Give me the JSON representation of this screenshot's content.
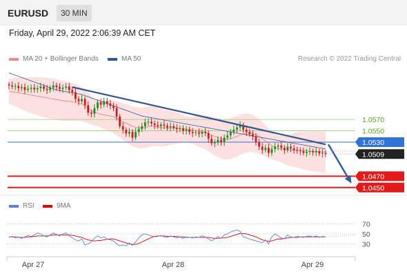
{
  "header": {
    "symbol": "EURUSD",
    "timeframe": "30 MIN"
  },
  "subheader": {
    "datetime": "Friday, April 29, 2022 2:06:39 AM CET"
  },
  "legend": {
    "items": [
      {
        "label": "MA 20 + Bollinger Bands",
        "color": "#f08a8a"
      },
      {
        "label": "MA 50",
        "color": "#2f5a9a"
      }
    ],
    "credit": "Research © 2022 Trading Central"
  },
  "rsi_legend": {
    "items": [
      {
        "label": "RSI",
        "color": "#5b7fdd"
      },
      {
        "label": "9MA",
        "color": "#e00000"
      }
    ]
  },
  "chart_data": {
    "type": "candlestick",
    "symbol": "EURUSD",
    "timeframe": "30 MIN",
    "x_labels": [
      "Apr 27",
      "Apr 28",
      "Apr 29"
    ],
    "price_labels": [
      {
        "value": 1.057,
        "label": "1.0570",
        "kind": "target-green"
      },
      {
        "value": 1.055,
        "label": "1.0550",
        "kind": "target-green"
      },
      {
        "value": 1.053,
        "label": "1.0530",
        "kind": "pivot-blue"
      },
      {
        "value": 1.0509,
        "label": "1.0509",
        "kind": "last-price"
      },
      {
        "value": 1.047,
        "label": "1.0470",
        "kind": "support-red"
      },
      {
        "value": 1.045,
        "label": "1.0450",
        "kind": "support-red"
      }
    ],
    "closes": [
      1.063,
      1.0628,
      1.0629,
      1.0625,
      1.0627,
      1.0622,
      1.0624,
      1.0626,
      1.0623,
      1.0625,
      1.0628,
      1.0624,
      1.0622,
      1.0626,
      1.063,
      1.0627,
      1.0624,
      1.0626,
      1.0628,
      1.0622,
      1.0618,
      1.0606,
      1.0602,
      1.0606,
      1.0595,
      1.0582,
      1.058,
      1.059,
      1.06,
      1.0596,
      1.0602,
      1.0598,
      1.0594,
      1.059,
      1.0575,
      1.0558,
      1.0552,
      1.0545,
      1.0548,
      1.0538,
      1.0548,
      1.0553,
      1.0558,
      1.0565,
      1.0566,
      1.0563,
      1.056,
      1.0558,
      1.0561,
      1.0559,
      1.0556,
      1.0558,
      1.0555,
      1.0553,
      1.0554,
      1.055,
      1.0552,
      1.0548,
      1.0546,
      1.0547,
      1.0545,
      1.0548,
      1.0546,
      1.0536,
      1.0528,
      1.053,
      1.0534,
      1.053,
      1.0538,
      1.0542,
      1.0548,
      1.0552,
      1.0556,
      1.056,
      1.0552,
      1.0548,
      1.0544,
      1.054,
      1.053,
      1.0522,
      1.0516,
      1.052,
      1.0511,
      1.0518,
      1.0522,
      1.0524,
      1.052,
      1.0516,
      1.0522,
      1.0519,
      1.0516,
      1.0515,
      1.0514,
      1.0511,
      1.0513,
      1.0514,
      1.0512,
      1.0514,
      1.051,
      1.0511,
      1.0509
    ],
    "ma20": [
      1.062,
      1.0619,
      1.0618,
      1.0617,
      1.0616,
      1.0615,
      1.0614,
      1.0613,
      1.0612,
      1.0611,
      1.061,
      1.0609,
      1.0608,
      1.0607,
      1.0606,
      1.0605,
      1.0604,
      1.0603,
      1.0602,
      1.0602,
      1.0601,
      1.06,
      1.0599,
      1.0597,
      1.0594,
      1.059,
      1.0586,
      1.0583,
      1.0581,
      1.0579,
      1.0578,
      1.0577,
      1.0576,
      1.0575,
      1.0572,
      1.0569,
      1.0566,
      1.0563,
      1.0561,
      1.0558,
      1.0556,
      1.0555,
      1.0555,
      1.0556,
      1.0557,
      1.0558,
      1.0558,
      1.0557,
      1.0556,
      1.0555,
      1.0555,
      1.0555,
      1.0555,
      1.0555,
      1.0554,
      1.0554,
      1.0553,
      1.0552,
      1.0551,
      1.055,
      1.0549,
      1.0548,
      1.0547,
      1.0545,
      1.0542,
      1.054,
      1.0538,
      1.0536,
      1.0535,
      1.0535,
      1.0536,
      1.0538,
      1.054,
      1.0543,
      1.0545,
      1.0546,
      1.0546,
      1.0545,
      1.0543,
      1.054,
      1.0536,
      1.0532,
      1.0528,
      1.0524,
      1.0521,
      1.0519,
      1.0518,
      1.0517,
      1.0516,
      1.0516,
      1.0516,
      1.0516,
      1.0516,
      1.0515,
      1.0515,
      1.0514,
      1.0514,
      1.0514,
      1.0513,
      1.0513,
      1.0513
    ],
    "ma50": [
      1.0652,
      1.065,
      1.0648,
      1.0646,
      1.0644,
      1.0642,
      1.064,
      1.0638,
      1.0636,
      1.0634,
      1.0632,
      1.063,
      1.0628,
      1.0626,
      1.0624,
      1.0622,
      1.0621,
      1.062,
      1.0619,
      1.0618,
      1.0617,
      1.0616,
      1.0615,
      1.0614,
      1.0612,
      1.061,
      1.0608,
      1.0606,
      1.0604,
      1.0602,
      1.06,
      1.0598,
      1.0596,
      1.0594,
      1.0592,
      1.059,
      1.0588,
      1.0586,
      1.0584,
      1.0582,
      1.058,
      1.0578,
      1.0576,
      1.0575,
      1.0574,
      1.0573,
      1.0572,
      1.0571,
      1.057,
      1.0569,
      1.0568,
      1.0567,
      1.0566,
      1.0565,
      1.0564,
      1.0563,
      1.0562,
      1.0561,
      1.056,
      1.0559,
      1.0558,
      1.0557,
      1.0556,
      1.0555,
      1.0554,
      1.0553,
      1.0552,
      1.0551,
      1.055,
      1.0549,
      1.0548,
      1.0547,
      1.0546,
      1.0545,
      1.0544,
      1.0543,
      1.0542,
      1.0541,
      1.054,
      1.0539,
      1.0538,
      1.0537,
      1.0536,
      1.0535,
      1.0534,
      1.0533,
      1.0532,
      1.0531,
      1.053,
      1.0529,
      1.0528,
      1.0527,
      1.0526,
      1.0525,
      1.0524,
      1.0523,
      1.0522,
      1.0521,
      1.052,
      1.0519,
      1.0518
    ],
    "trendline": {
      "from": 1.0627,
      "to": 1.0526
    },
    "forecast_arrow": {
      "from": 1.0526,
      "to": 1.047
    },
    "rsi": {
      "levels": [
        {
          "value": 70,
          "label": "70"
        },
        {
          "value": 50,
          "label": "50"
        },
        {
          "value": 30,
          "label": "30"
        }
      ],
      "ylim": [
        10,
        90
      ],
      "rsi": [
        43,
        45,
        42,
        44,
        41,
        44,
        47,
        45,
        48,
        52,
        50,
        46,
        44,
        48,
        52,
        49,
        46,
        50,
        52,
        46,
        42,
        38,
        36,
        40,
        28,
        30,
        34,
        42,
        46,
        42,
        44,
        40,
        38,
        36,
        30,
        26,
        28,
        26,
        32,
        27,
        34,
        42,
        48,
        50,
        48,
        46,
        44,
        45,
        47,
        44,
        43,
        46,
        44,
        42,
        44,
        41,
        44,
        43,
        42,
        44,
        43,
        46,
        44,
        40,
        36,
        40,
        45,
        41,
        48,
        50,
        54,
        56,
        58,
        55,
        44,
        42,
        40,
        38,
        36,
        34,
        32,
        38,
        30,
        44,
        50,
        46,
        42,
        40,
        48,
        44,
        43,
        45,
        44,
        43,
        45,
        46,
        44,
        46,
        43,
        45,
        44
      ],
      "ma9": [
        44,
        44,
        44,
        43,
        43,
        43,
        44,
        44,
        45,
        46,
        46,
        46,
        46,
        47,
        48,
        48,
        48,
        48,
        48,
        48,
        47,
        46,
        44,
        43,
        40,
        38,
        37,
        36,
        37,
        37,
        38,
        39,
        40,
        40,
        38,
        36,
        34,
        32,
        30,
        29,
        29,
        31,
        34,
        37,
        40,
        43,
        45,
        46,
        46,
        46,
        45,
        45,
        45,
        45,
        44,
        44,
        43,
        43,
        43,
        43,
        43,
        43,
        43,
        43,
        42,
        41,
        41,
        42,
        42,
        43,
        45,
        47,
        49,
        51,
        51,
        50,
        48,
        46,
        44,
        41,
        38,
        37,
        35,
        36,
        38,
        40,
        40,
        41,
        42,
        43,
        43,
        43,
        44,
        44,
        44,
        44,
        44,
        44,
        44,
        44,
        44
      ]
    }
  }
}
